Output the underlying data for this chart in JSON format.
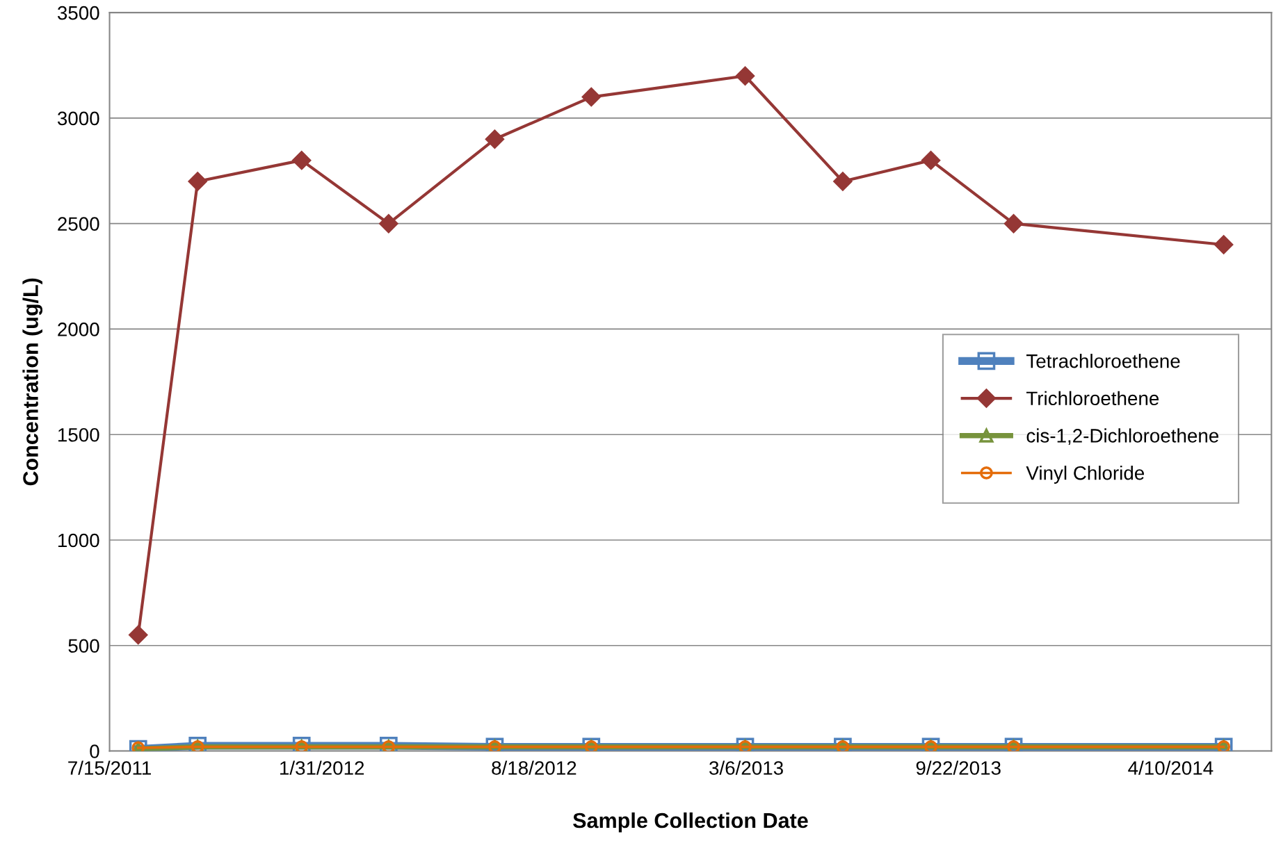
{
  "chart_data": {
    "type": "line",
    "xlabel": "Sample Collection Date",
    "ylabel": "Concentration (ug/L)",
    "x": [
      "2011-08-11",
      "2011-10-06",
      "2012-01-12",
      "2012-04-03",
      "2012-07-12",
      "2012-10-11",
      "2013-03-05",
      "2013-06-05",
      "2013-08-27",
      "2013-11-13",
      "2014-05-30"
    ],
    "series": [
      {
        "name": "Tetrachloroethene",
        "color": "#4f81bd",
        "marker": "square",
        "values": [
          10,
          25,
          25,
          25,
          20,
          20,
          20,
          20,
          20,
          20,
          20
        ]
      },
      {
        "name": "Trichloroethene",
        "color": "#953735",
        "marker": "diamond",
        "values": [
          550,
          2700,
          2800,
          2500,
          2900,
          3100,
          3200,
          2700,
          2800,
          2500,
          2400
        ]
      },
      {
        "name": "cis-1,2-Dichloroethene",
        "color": "#77933c",
        "marker": "triangle",
        "values": [
          10,
          20,
          20,
          20,
          20,
          20,
          20,
          20,
          20,
          20,
          20
        ]
      },
      {
        "name": "Vinyl Chloride",
        "color": "#e46c0a",
        "marker": "circle",
        "values": [
          15,
          20,
          20,
          20,
          20,
          20,
          20,
          20,
          20,
          20,
          20
        ]
      }
    ],
    "xlim": [
      "2011-07-15",
      "2014-07-14"
    ],
    "xticks": [
      {
        "value": "2011-07-15",
        "label": "7/15/2011"
      },
      {
        "value": "2012-01-31",
        "label": "1/31/2012"
      },
      {
        "value": "2012-08-18",
        "label": "8/18/2012"
      },
      {
        "value": "2013-03-06",
        "label": "3/6/2013"
      },
      {
        "value": "2013-09-22",
        "label": "9/22/2013"
      },
      {
        "value": "2014-04-10",
        "label": "4/10/2014"
      }
    ],
    "ylim": [
      0,
      3500
    ],
    "yticks": [
      0,
      500,
      1000,
      1500,
      2000,
      2500,
      3000,
      3500
    ],
    "grid": "y",
    "legend": "right",
    "line_style": "solid"
  }
}
